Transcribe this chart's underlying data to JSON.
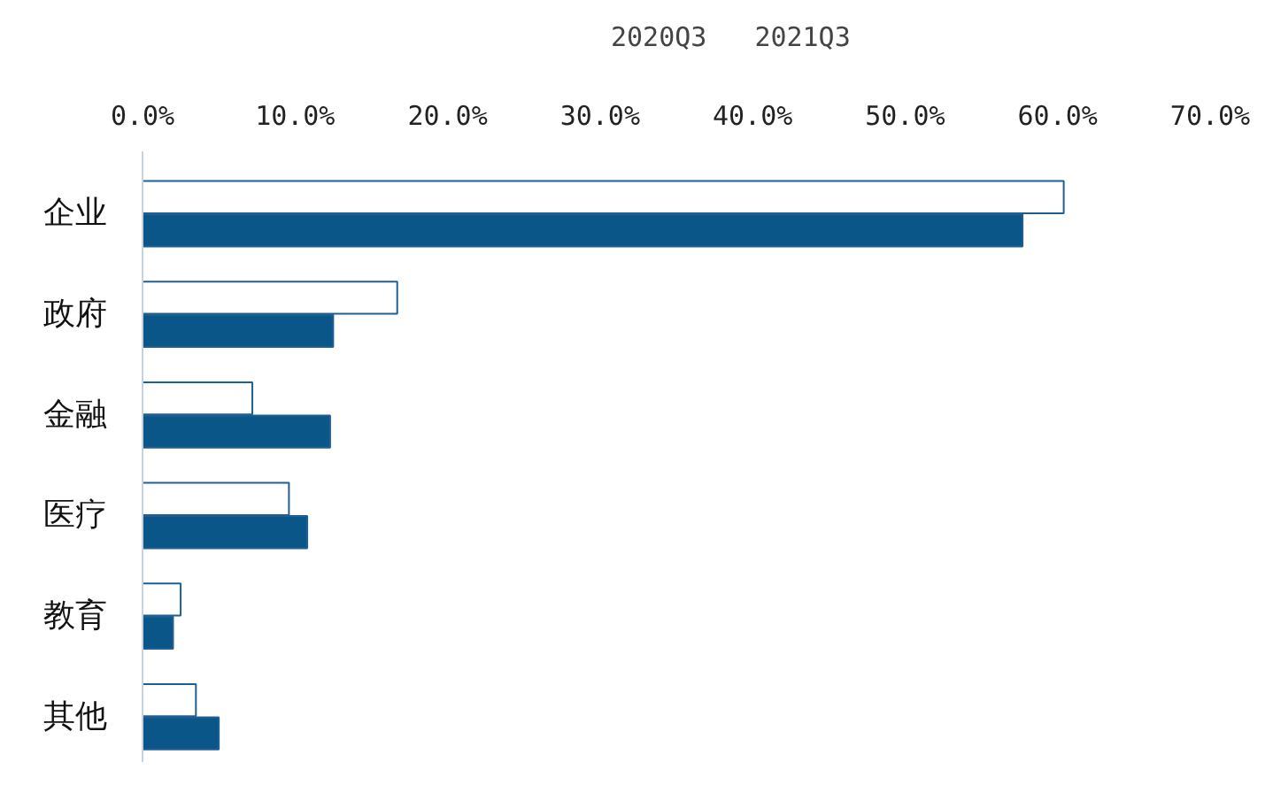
{
  "chart_data": {
    "type": "bar",
    "orientation": "horizontal",
    "categories": [
      "企业",
      "政府",
      "金融",
      "医疗",
      "教育",
      "其他"
    ],
    "series": [
      {
        "name": "2020Q3",
        "color": "#ffffff",
        "values": [
          60.4,
          16.7,
          7.2,
          9.6,
          2.5,
          3.5
        ]
      },
      {
        "name": "2021Q3",
        "color": "#0b5689",
        "values": [
          57.7,
          12.5,
          12.3,
          10.8,
          2.0,
          5.0
        ]
      }
    ],
    "xlim": [
      0,
      70
    ],
    "xticks": [
      {
        "value": 0,
        "label": "0.0%"
      },
      {
        "value": 10,
        "label": "10.0%"
      },
      {
        "value": 20,
        "label": "20.0%"
      },
      {
        "value": 30,
        "label": "30.0%"
      },
      {
        "value": 40,
        "label": "40.0%"
      },
      {
        "value": 50,
        "label": "50.0%"
      },
      {
        "value": 60,
        "label": "60.0%"
      },
      {
        "value": 70,
        "label": "70.0%"
      }
    ],
    "grid": false,
    "legend": "top"
  }
}
